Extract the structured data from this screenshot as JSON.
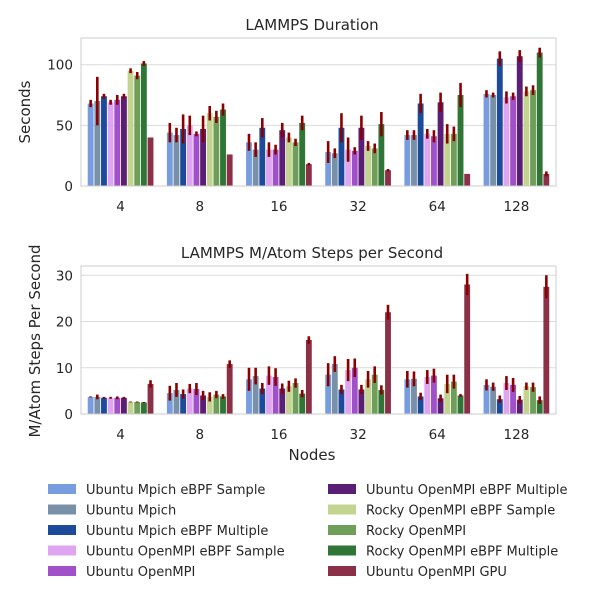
{
  "chart_data": [
    {
      "type": "bar",
      "title": "LAMMPS Duration",
      "ylabel": "Seconds",
      "xlabel": "",
      "ylim": [
        0,
        122
      ],
      "yticks": [
        0,
        50,
        100
      ],
      "grid": true,
      "categories": [
        "4",
        "8",
        "16",
        "32",
        "64",
        "128"
      ],
      "series": [
        {
          "name": "Ubuntu Mpich eBPF Sample",
          "color": "#779ddf",
          "values": [
            68,
            44,
            36,
            28,
            42,
            76
          ],
          "err": [
            3,
            8,
            7,
            9,
            4,
            3
          ]
        },
        {
          "name": "Ubuntu Mpich",
          "color": "#7890a8",
          "values": [
            70,
            42,
            30,
            27,
            42,
            75
          ],
          "err": [
            20,
            6,
            6,
            4,
            4,
            2
          ]
        },
        {
          "name": "Ubuntu Mpich eBPF Multiple",
          "color": "#1d4b9b",
          "values": [
            74,
            47,
            48,
            48,
            68,
            105
          ],
          "err": [
            2,
            12,
            8,
            12,
            8,
            6
          ]
        },
        {
          "name": "Ubuntu OpenMPI eBPF Sample",
          "color": "#e0a5f0",
          "values": [
            69,
            50,
            30,
            30,
            43,
            73
          ],
          "err": [
            2,
            8,
            6,
            10,
            4,
            5
          ]
        },
        {
          "name": "Ubuntu OpenMPI",
          "color": "#a050c8",
          "values": [
            71,
            43,
            30,
            29,
            41,
            74
          ],
          "err": [
            4,
            2,
            4,
            3,
            5,
            3
          ]
        },
        {
          "name": "Ubuntu OpenMPI eBPF Multiple",
          "color": "#5a1f74",
          "values": [
            74,
            47,
            46,
            48,
            69,
            107
          ],
          "err": [
            2,
            11,
            6,
            10,
            8,
            5
          ]
        },
        {
          "name": "Rocky OpenMPI eBPF Sample",
          "color": "#c2d490",
          "values": [
            95,
            60,
            40,
            33,
            43,
            78
          ],
          "err": [
            2,
            6,
            4,
            4,
            8,
            4
          ]
        },
        {
          "name": "Rocky OpenMPI",
          "color": "#6f9e58",
          "values": [
            91,
            57,
            36,
            31,
            43,
            79
          ],
          "err": [
            3,
            5,
            3,
            4,
            6,
            4
          ]
        },
        {
          "name": "Rocky OpenMPI eBPF Multiple",
          "color": "#2f7536",
          "values": [
            101,
            63,
            52,
            51,
            75,
            110
          ],
          "err": [
            2,
            5,
            6,
            10,
            10,
            4
          ]
        },
        {
          "name": "Ubuntu OpenMPI GPU",
          "color": "#8c3048",
          "values": [
            40,
            26,
            18,
            13,
            10,
            10
          ],
          "err": [
            0,
            0,
            1,
            1,
            0,
            2
          ]
        }
      ]
    },
    {
      "type": "bar",
      "title": "LAMMPS M/Atom Steps per Second",
      "ylabel": "M/Atom Steps Per Second",
      "xlabel": "Nodes",
      "ylim": [
        0,
        32
      ],
      "yticks": [
        0,
        10,
        20,
        30
      ],
      "grid": true,
      "categories": [
        "4",
        "8",
        "16",
        "32",
        "64",
        "128"
      ],
      "series": [
        {
          "name": "Ubuntu Mpich eBPF Sample",
          "color": "#779ddf",
          "values": [
            3.7,
            4.5,
            7.5,
            8.5,
            7.5,
            6.3
          ],
          "err": [
            0.1,
            1.6,
            2.5,
            2.5,
            1.8,
            1.2
          ]
        },
        {
          "name": "Ubuntu Mpich",
          "color": "#7890a8",
          "values": [
            3.7,
            5.2,
            8.2,
            10.8,
            7.6,
            5.9
          ],
          "err": [
            0.5,
            1.5,
            1.8,
            1.7,
            1.6,
            0.9
          ]
        },
        {
          "name": "Ubuntu Mpich eBPF Multiple",
          "color": "#1d4b9b",
          "values": [
            3.5,
            4.3,
            5.5,
            5.3,
            3.8,
            3.2
          ],
          "err": [
            0.2,
            1.0,
            1.2,
            1.0,
            0.8,
            0.8
          ]
        },
        {
          "name": "Ubuntu OpenMPI eBPF Sample",
          "color": "#e0a5f0",
          "values": [
            3.5,
            5.5,
            8.3,
            9.5,
            8.0,
            6.7
          ],
          "err": [
            0.2,
            1.0,
            2.0,
            2.4,
            1.5,
            1.5
          ]
        },
        {
          "name": "Ubuntu OpenMPI",
          "color": "#a050c8",
          "values": [
            3.5,
            5.4,
            8.0,
            10.0,
            8.3,
            6.3
          ],
          "err": [
            0.3,
            1.3,
            1.9,
            2.0,
            1.5,
            1.5
          ]
        },
        {
          "name": "Ubuntu OpenMPI eBPF Multiple",
          "color": "#5a1f74",
          "values": [
            3.5,
            4.0,
            5.5,
            5.3,
            3.4,
            3.1
          ],
          "err": [
            0.2,
            1.0,
            1.1,
            1.0,
            0.8,
            0.8
          ]
        },
        {
          "name": "Rocky OpenMPI eBPF Sample",
          "color": "#c2d490",
          "values": [
            2.6,
            3.7,
            6.0,
            7.5,
            6.5,
            6.0
          ],
          "err": [
            0.1,
            1.0,
            1.2,
            1.8,
            2.0,
            0.8
          ]
        },
        {
          "name": "Rocky OpenMPI",
          "color": "#6f9e58",
          "values": [
            2.6,
            4.2,
            6.7,
            8.5,
            7.0,
            5.8
          ],
          "err": [
            0.1,
            0.8,
            1.0,
            1.8,
            1.5,
            1.0
          ]
        },
        {
          "name": "Rocky OpenMPI eBPF Multiple",
          "color": "#2f7536",
          "values": [
            2.5,
            3.8,
            4.4,
            5.2,
            4.0,
            3.0
          ],
          "err": [
            0.1,
            0.5,
            0.8,
            1.0,
            0.3,
            0.8
          ]
        },
        {
          "name": "Ubuntu OpenMPI GPU",
          "color": "#8c3048",
          "values": [
            6.5,
            10.8,
            16.0,
            22.0,
            28.0,
            27.5
          ],
          "err": [
            0.8,
            0.8,
            0.8,
            1.6,
            2.3,
            2.5
          ]
        }
      ]
    }
  ],
  "error_color": "#8b0000"
}
